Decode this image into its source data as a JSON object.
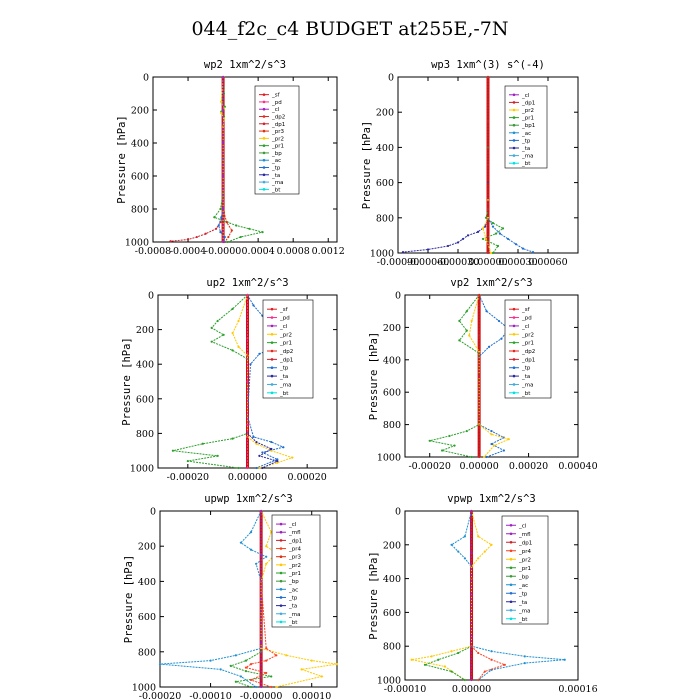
{
  "figure": {
    "title": "044_f2c_c4  BUDGET at255E,-7N"
  },
  "colors": {
    "sf": "#e41a1c",
    "pd": "#ff2a8a",
    "cl": "#a020c0",
    "dp2": "#e8241e",
    "dp1": "#d0202a",
    "pr1": "#2aa02a",
    "pr2": "#ffc800",
    "pr3": "#e03010",
    "pr4": "#ff4020",
    "tp": "#1e6ed2",
    "ac": "#1e90d2",
    "bp": "#3a9a3a",
    "bp1": "#3a9a3a",
    "ta": "#2a2aa0",
    "ma": "#44aadd",
    "bt": "#00e0e0",
    "mfl": "#a020c0"
  },
  "chart_data": [
    {
      "type": "line",
      "title": "wp2  1xm^2/s^3",
      "ylabel": "Pressure [hPa]",
      "xlim": [
        -0.0008,
        0.0013
      ],
      "ylim": [
        1000,
        0
      ],
      "yticks": [
        "0",
        "200",
        "400",
        "600",
        "800",
        "1000"
      ],
      "xticks": [
        "-0.0008",
        "-0.0004",
        "-0.0000",
        "0.0004",
        "0.0008",
        "0.0012"
      ],
      "legend": [
        "_sf",
        "_pd",
        "_cl",
        "_dp2",
        "_dp1",
        "_pr3",
        "_pr2",
        "_pr1",
        "_bp",
        "_ac",
        "_tp",
        "_ta",
        "_ma",
        "_bt"
      ],
      "series": [
        {
          "name": "_pr1",
          "color": "pr1",
          "x": [
            0,
            1e-05,
            -2e-05,
            2e-05,
            -2e-05,
            1e-05,
            0,
            0,
            0,
            -3e-05,
            -0.0001,
            5e-05,
            0.00015,
            0.0003,
            0.00045,
            0.0002,
            5e-05
          ],
          "y": [
            0,
            100,
            150,
            180,
            210,
            240,
            300,
            500,
            700,
            800,
            850,
            880,
            900,
            920,
            940,
            970,
            1000
          ]
        },
        {
          "name": "_dp1",
          "color": "dp1",
          "x": [
            0,
            0,
            0,
            0,
            0,
            -3e-05,
            -8e-05,
            -0.0002,
            -0.0003,
            -0.0004,
            -0.0006
          ],
          "y": [
            0,
            300,
            600,
            780,
            820,
            880,
            920,
            950,
            970,
            985,
            995
          ]
        },
        {
          "name": "_pr3",
          "color": "pr3",
          "x": [
            0,
            0,
            0,
            1e-05,
            4e-05,
            0.0001,
            6e-05,
            2e-05
          ],
          "y": [
            0,
            400,
            750,
            820,
            880,
            930,
            970,
            1000
          ]
        },
        {
          "name": "_tp",
          "color": "tp",
          "x": [
            0,
            0,
            0,
            -2e-05,
            -5e-05,
            -3e-05,
            2e-05,
            1e-05
          ],
          "y": [
            0,
            400,
            800,
            850,
            900,
            940,
            970,
            1000
          ]
        },
        {
          "name": "_pr2",
          "color": "pr2",
          "x": [
            0,
            -2e-05,
            1e-05,
            -2e-05,
            1e-05,
            0,
            0
          ],
          "y": [
            0,
            150,
            190,
            220,
            250,
            300,
            1000
          ]
        },
        {
          "name": "_cl",
          "color": "cl",
          "x": [
            0,
            0,
            0,
            0,
            0,
            0
          ],
          "y": [
            0,
            200,
            400,
            600,
            800,
            1000
          ]
        }
      ]
    },
    {
      "type": "line",
      "title": "wp3  1xm^(3) s^(-4)",
      "ylabel": "Pressure [hPa]",
      "xlim": [
        -0.0009,
        0.0009
      ],
      "ylim": [
        1000,
        0
      ],
      "yticks": [
        "0",
        "200",
        "400",
        "600",
        "800",
        "1000"
      ],
      "xticks": [
        "-0.00090",
        "-0.00060",
        "-0.00030",
        "0.00000",
        "0.00030",
        "0.00060"
      ],
      "legend": [
        "_cl",
        "_dp1",
        "_pr2",
        "_pr1",
        "_bp1",
        "_ac",
        "_tp",
        "_ta",
        "_ma",
        "_bt"
      ],
      "series": [
        {
          "name": "_pr1",
          "color": "pr1",
          "x": [
            0,
            0,
            0,
            -2e-05,
            5e-05,
            0.00015,
            8e-05,
            -5e-05,
            0.0001,
            5e-05
          ],
          "y": [
            0,
            400,
            750,
            800,
            830,
            860,
            890,
            920,
            960,
            1000
          ]
        },
        {
          "name": "_ta",
          "color": "ta",
          "x": [
            0,
            0,
            0,
            -3e-05,
            -0.0001,
            -0.0002,
            -0.00025,
            -0.0003,
            -0.0004,
            -0.0006,
            -0.00085
          ],
          "y": [
            0,
            600,
            800,
            850,
            880,
            900,
            920,
            940,
            960,
            980,
            995
          ]
        },
        {
          "name": "_tp",
          "color": "tp",
          "x": [
            0,
            0,
            0,
            5e-05,
            0.00012,
            0.0002,
            0.00028,
            0.00035,
            0.00045
          ],
          "y": [
            0,
            700,
            800,
            850,
            890,
            920,
            950,
            975,
            995
          ]
        },
        {
          "name": "_pr2",
          "color": "pr2",
          "x": [
            0,
            0,
            0,
            -5e-05,
            -2e-05,
            3e-05
          ],
          "y": [
            0,
            700,
            800,
            860,
            920,
            1000
          ]
        },
        {
          "name": "_dp1",
          "color": "dp1",
          "x": [
            0,
            0,
            0,
            0,
            0
          ],
          "y": [
            0,
            250,
            500,
            750,
            1000
          ]
        }
      ]
    },
    {
      "type": "line",
      "title": "up2  1xm^2/s^3",
      "ylabel": "Pressure [hPa]",
      "xlim": [
        -0.0003,
        0.0003
      ],
      "ylim": [
        1000,
        0
      ],
      "yticks": [
        "0",
        "200",
        "400",
        "600",
        "800",
        "1000"
      ],
      "xticks": [
        "-0.00020",
        "0.00000",
        "0.00020"
      ],
      "legend": [
        "_sf",
        "_pd",
        "_cl",
        "_pr2",
        "_pr1",
        "_dp2",
        "_dp1",
        "_tp",
        "_ta",
        "_ma",
        "_bt"
      ],
      "series": [
        {
          "name": "_tp",
          "color": "tp",
          "x": [
            0,
            2e-05,
            5e-05,
            0.0001,
            0.00015,
            0.00018,
            0.0001,
            4e-05,
            1e-05,
            0,
            2e-05,
            8e-05,
            0.00012,
            5e-05,
            0.0001,
            3e-05
          ],
          "y": [
            0,
            60,
            120,
            170,
            220,
            260,
            300,
            340,
            400,
            700,
            820,
            850,
            880,
            910,
            950,
            1000
          ]
        },
        {
          "name": "_pr1",
          "color": "pr1",
          "x": [
            0,
            -5e-05,
            -0.0001,
            -0.00012,
            -8e-05,
            -0.00012,
            -5e-05,
            0,
            0,
            -5e-05,
            -0.00015,
            -0.00025,
            -0.0001,
            -0.0002,
            -3e-05
          ],
          "y": [
            0,
            80,
            150,
            190,
            230,
            270,
            320,
            370,
            800,
            830,
            860,
            900,
            930,
            960,
            1000
          ]
        },
        {
          "name": "_pr2",
          "color": "pr2",
          "x": [
            0,
            -3e-05,
            -5e-05,
            -3e-05,
            0,
            0,
            3e-05,
            8e-05,
            0.00015,
            0.0001,
            4e-05
          ],
          "y": [
            0,
            150,
            220,
            300,
            350,
            820,
            860,
            900,
            940,
            970,
            1000
          ]
        },
        {
          "name": "_ta",
          "color": "ta",
          "x": [
            0,
            0,
            3e-05,
            8e-05,
            4e-05,
            0.0001,
            5e-05
          ],
          "y": [
            0,
            800,
            850,
            890,
            930,
            960,
            1000
          ]
        },
        {
          "name": "_pd",
          "color": "pd",
          "x": [
            0,
            0,
            0,
            0,
            0
          ],
          "y": [
            0,
            250,
            500,
            750,
            1000
          ]
        }
      ]
    },
    {
      "type": "line",
      "title": "vp2  1xm^2/s^3",
      "ylabel": "Pressure [hPa]",
      "xlim": [
        -0.0003,
        0.0004
      ],
      "ylim": [
        1000,
        0
      ],
      "yticks": [
        "0",
        "200",
        "400",
        "600",
        "800",
        "1000"
      ],
      "xticks": [
        "-0.00020",
        "0.00000",
        "0.00020",
        "0.00040"
      ],
      "legend": [
        "_sf",
        "_pd",
        "_cl",
        "_pr2",
        "_pr1",
        "_dp2",
        "_dp1",
        "_tp",
        "_ta",
        "_ma",
        "_bt"
      ],
      "series": [
        {
          "name": "_tp",
          "color": "tp",
          "x": [
            0,
            3e-05,
            8e-05,
            0.00012,
            9e-05,
            4e-05,
            0,
            0,
            5e-05,
            0.0001,
            5e-05,
            0.0001,
            3e-05
          ],
          "y": [
            0,
            100,
            160,
            210,
            270,
            320,
            380,
            800,
            840,
            880,
            920,
            960,
            1000
          ]
        },
        {
          "name": "_pr1",
          "color": "pr1",
          "x": [
            0,
            -5e-05,
            -8e-05,
            -5e-05,
            -8e-05,
            0,
            0,
            -5e-05,
            -0.00012,
            -0.0002,
            -0.0001,
            -0.00015,
            -3e-05
          ],
          "y": [
            0,
            100,
            160,
            220,
            280,
            360,
            800,
            840,
            870,
            900,
            930,
            960,
            1000
          ]
        },
        {
          "name": "_pr2",
          "color": "pr2",
          "x": [
            0,
            -3e-05,
            -4e-05,
            0,
            0,
            5e-05,
            0.00012,
            6e-05,
            2e-05
          ],
          "y": [
            0,
            160,
            250,
            350,
            800,
            860,
            890,
            930,
            1000
          ]
        },
        {
          "name": "_dp1",
          "color": "dp1",
          "x": [
            0,
            0,
            0,
            0,
            0
          ],
          "y": [
            0,
            250,
            500,
            750,
            1000
          ]
        }
      ]
    },
    {
      "type": "line",
      "title": "upwp  1xm^2/s^3",
      "ylabel": "Pressure [hPa]",
      "xlim": [
        -0.0002,
        0.00015
      ],
      "ylim": [
        1000,
        0
      ],
      "yticks": [
        "0",
        "200",
        "400",
        "600",
        "800",
        "1000"
      ],
      "xticks": [
        "-0.00020",
        "-0.00010",
        "-0.00000",
        "0.00010"
      ],
      "legend": [
        "_cl",
        "_mfl",
        "_dp1",
        "_pr4",
        "_pr3",
        "_pr2",
        "_pr1",
        "_bp",
        "_ac",
        "_tp",
        "_ta",
        "_ma",
        "_bt"
      ],
      "series": [
        {
          "name": "_ac",
          "color": "ac",
          "x": [
            0,
            -2e-05,
            -4e-05,
            -2e-05,
            1e-05,
            -1e-05,
            0,
            0,
            -5e-05,
            -0.0001,
            -0.0002,
            -8e-05,
            -4e-05,
            -1e-05
          ],
          "y": [
            0,
            120,
            180,
            220,
            260,
            300,
            400,
            780,
            820,
            850,
            870,
            900,
            940,
            1000
          ]
        },
        {
          "name": "_pr2",
          "color": "pr2",
          "x": [
            0,
            2e-05,
            1e-05,
            3e-05,
            1e-05,
            0,
            0,
            5e-05,
            0.0001,
            0.00015,
            8e-05,
            0.00012,
            3e-05
          ],
          "y": [
            0,
            120,
            200,
            240,
            300,
            400,
            780,
            820,
            850,
            870,
            900,
            940,
            1000
          ]
        },
        {
          "name": "_pr1",
          "color": "pr1",
          "x": [
            0,
            0,
            0,
            -3e-05,
            -6e-05,
            -3e-05,
            2e-05,
            -5e-05,
            -2e-05
          ],
          "y": [
            0,
            400,
            800,
            850,
            880,
            910,
            940,
            970,
            1000
          ]
        },
        {
          "name": "_pr4",
          "color": "pr4",
          "x": [
            0,
            0,
            1e-05,
            3e-05,
            1e-05,
            -2e-05,
            -3e-05,
            1e-05,
            -2e-05,
            2e-05
          ],
          "y": [
            0,
            400,
            780,
            820,
            850,
            870,
            890,
            920,
            960,
            1000
          ]
        },
        {
          "name": "_cl",
          "color": "cl",
          "x": [
            0,
            0,
            0,
            0,
            0
          ],
          "y": [
            0,
            250,
            500,
            750,
            1000
          ]
        }
      ]
    },
    {
      "type": "line",
      "title": "vpwp  1xm^2/s^3",
      "ylabel": "Pressure [hPa]",
      "xlim": [
        -0.0001,
        0.00016
      ],
      "ylim": [
        1000,
        0
      ],
      "yticks": [
        "0",
        "200",
        "400",
        "600",
        "800",
        "1000"
      ],
      "xticks": [
        "-0.00010",
        "0.00000",
        "0.00016"
      ],
      "legend": [
        "_cl",
        "_mfl",
        "_dp1",
        "_pr4",
        "_pr2",
        "_pr1",
        "_bp",
        "_ac",
        "_tp",
        "_ta",
        "_ma",
        "_bt"
      ],
      "series": [
        {
          "name": "_ac",
          "color": "ac",
          "x": [
            0,
            -1e-05,
            -3e-05,
            -2e-05,
            -1e-05,
            0,
            0,
            3e-05,
            8e-05,
            0.00014,
            8e-05,
            3e-05,
            1e-05
          ],
          "y": [
            0,
            150,
            200,
            240,
            280,
            330,
            800,
            830,
            860,
            880,
            900,
            940,
            1000
          ]
        },
        {
          "name": "_pr2",
          "color": "pr2",
          "x": [
            0,
            1e-05,
            3e-05,
            2e-05,
            1e-05,
            0,
            0,
            -3e-05,
            -6e-05,
            -9e-05,
            -4e-05,
            -1e-05
          ],
          "y": [
            0,
            150,
            200,
            240,
            280,
            330,
            800,
            830,
            860,
            880,
            920,
            1000
          ]
        },
        {
          "name": "_pr1",
          "color": "pr1",
          "x": [
            0,
            0,
            0,
            -2e-05,
            -5e-05,
            -7e-05,
            -3e-05,
            -1e-05
          ],
          "y": [
            0,
            400,
            800,
            840,
            880,
            910,
            950,
            1000
          ]
        },
        {
          "name": "_pr4",
          "color": "pr4",
          "x": [
            0,
            0,
            0,
            1e-05,
            3e-05,
            5e-05,
            2e-05,
            1e-05
          ],
          "y": [
            0,
            400,
            800,
            840,
            880,
            910,
            950,
            1000
          ]
        },
        {
          "name": "_cl",
          "color": "cl",
          "x": [
            0,
            0,
            0,
            0,
            0
          ],
          "y": [
            0,
            250,
            500,
            750,
            1000
          ]
        }
      ]
    }
  ]
}
